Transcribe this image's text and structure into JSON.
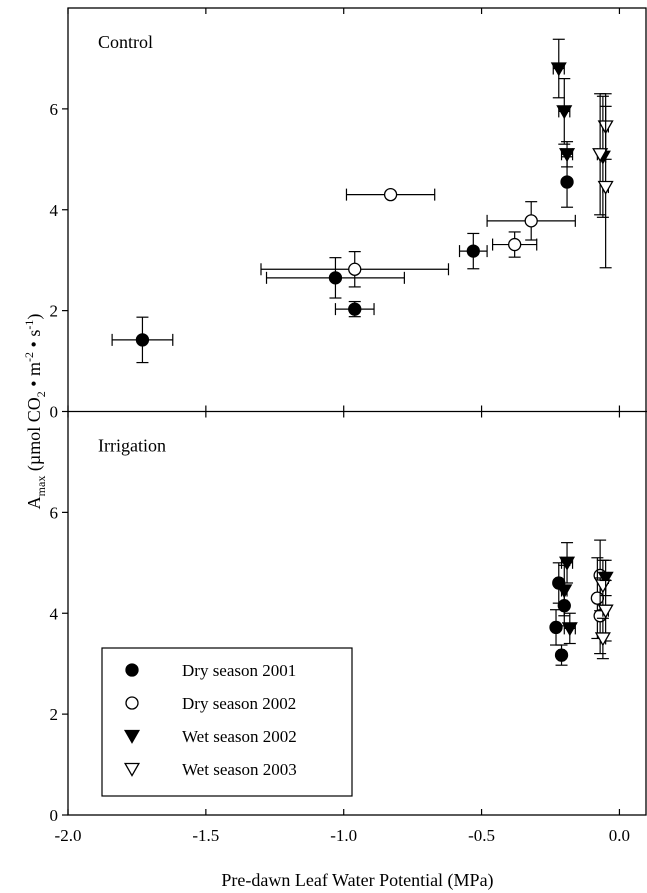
{
  "chart_data": {
    "type": "scatter",
    "xlabel": "Pre-dawn Leaf Water Potential (MPa)",
    "ylabel": {
      "main": "A",
      "sub": "max",
      "units": " (µmol CO",
      "units_sub": "2",
      "mid": " • m",
      "exp1": "-2",
      "mid2": " • s",
      "exp2": "-1",
      "close": ")"
    },
    "xlim": [
      -2.0,
      0.1
    ],
    "ylim": [
      0,
      8
    ],
    "x_ticks": [
      -2.0,
      -1.5,
      -1.0,
      -0.5,
      0.0
    ],
    "x_tick_labels": [
      "-2.0",
      "-1.5",
      "-1.0",
      "-0.5",
      "0.0"
    ],
    "y_ticks": [
      0,
      2,
      4,
      6
    ],
    "y_tick_labels": [
      "0",
      "2",
      "4",
      "6"
    ],
    "grid": false,
    "legend_position": "lower-left of bottom panel",
    "series_styles": [
      {
        "name": "Dry season 2001",
        "marker": "circle",
        "filled": true
      },
      {
        "name": "Dry season 2002",
        "marker": "circle",
        "filled": false
      },
      {
        "name": "Wet season 2002",
        "marker": "triangle-down",
        "filled": true
      },
      {
        "name": "Wet season 2003",
        "marker": "triangle-down",
        "filled": false
      }
    ],
    "panels": [
      {
        "label": "Control",
        "series": [
          {
            "name": "Dry season 2001",
            "points": [
              {
                "x": -1.73,
                "y": 1.42,
                "xerr": 0.11,
                "yerr": 0.45
              },
              {
                "x": -1.03,
                "y": 2.65,
                "xerr": 0.25,
                "yerr": 0.4
              },
              {
                "x": -0.96,
                "y": 2.03,
                "xerr": 0.07,
                "yerr": 0.15
              },
              {
                "x": -0.53,
                "y": 3.18,
                "xerr": 0.05,
                "yerr": 0.35
              },
              {
                "x": -0.19,
                "y": 4.55,
                "xerr": 0.0,
                "yerr": 0.5
              }
            ]
          },
          {
            "name": "Dry season 2002",
            "points": [
              {
                "x": -0.96,
                "y": 2.82,
                "xerr": 0.34,
                "yerr": 0.35
              },
              {
                "x": -0.83,
                "y": 4.3,
                "xerr": 0.16,
                "yerr": 0.0
              },
              {
                "x": -0.38,
                "y": 3.31,
                "xerr": 0.08,
                "yerr": 0.25
              },
              {
                "x": -0.32,
                "y": 3.78,
                "xerr": 0.16,
                "yerr": 0.38
              }
            ]
          },
          {
            "name": "Wet season 2002",
            "points": [
              {
                "x": -0.22,
                "y": 6.8,
                "xerr": 0.02,
                "yerr": 0.58
              },
              {
                "x": -0.2,
                "y": 5.95,
                "xerr": 0.02,
                "yerr": 0.65
              },
              {
                "x": -0.19,
                "y": 5.1,
                "xerr": 0.02,
                "yerr": 0.25
              },
              {
                "x": -0.06,
                "y": 5.05,
                "xerr": 0.01,
                "yerr": 1.2
              }
            ]
          },
          {
            "name": "Wet season 2003",
            "points": [
              {
                "x": -0.05,
                "y": 5.65,
                "xerr": 0.01,
                "yerr": 0.65
              },
              {
                "x": -0.07,
                "y": 5.1,
                "xerr": 0.01,
                "yerr": 1.2
              },
              {
                "x": -0.05,
                "y": 4.45,
                "xerr": 0.01,
                "yerr": 1.6
              }
            ]
          }
        ]
      },
      {
        "label": "Irrigation",
        "series": [
          {
            "name": "Dry season 2001",
            "points": [
              {
                "x": -0.22,
                "y": 4.6,
                "xerr": 0.01,
                "yerr": 0.4
              },
              {
                "x": -0.2,
                "y": 4.15,
                "xerr": 0.01,
                "yerr": 0.4
              },
              {
                "x": -0.23,
                "y": 3.72,
                "xerr": 0.01,
                "yerr": 0.35
              },
              {
                "x": -0.21,
                "y": 3.17,
                "xerr": 0.01,
                "yerr": 0.2
              }
            ]
          },
          {
            "name": "Dry season 2002",
            "points": [
              {
                "x": -0.07,
                "y": 4.75,
                "xerr": 0.01,
                "yerr": 0.7
              },
              {
                "x": -0.08,
                "y": 4.3,
                "xerr": 0.01,
                "yerr": 0.8
              },
              {
                "x": -0.07,
                "y": 3.95,
                "xerr": 0.01,
                "yerr": 0.75
              }
            ]
          },
          {
            "name": "Wet season 2002",
            "points": [
              {
                "x": -0.19,
                "y": 5.0,
                "xerr": 0.02,
                "yerr": 0.4
              },
              {
                "x": -0.2,
                "y": 4.45,
                "xerr": 0.01,
                "yerr": 0.5
              },
              {
                "x": -0.18,
                "y": 3.7,
                "xerr": 0.02,
                "yerr": 0.3
              },
              {
                "x": -0.05,
                "y": 4.7,
                "xerr": 0.01,
                "yerr": 0.35
              }
            ]
          },
          {
            "name": "Wet season 2003",
            "points": [
              {
                "x": -0.06,
                "y": 4.55,
                "xerr": 0.01,
                "yerr": 0.5
              },
              {
                "x": -0.05,
                "y": 4.05,
                "xerr": 0.01,
                "yerr": 0.6
              },
              {
                "x": -0.06,
                "y": 3.5,
                "xerr": 0.01,
                "yerr": 0.4
              }
            ]
          }
        ]
      }
    ]
  }
}
